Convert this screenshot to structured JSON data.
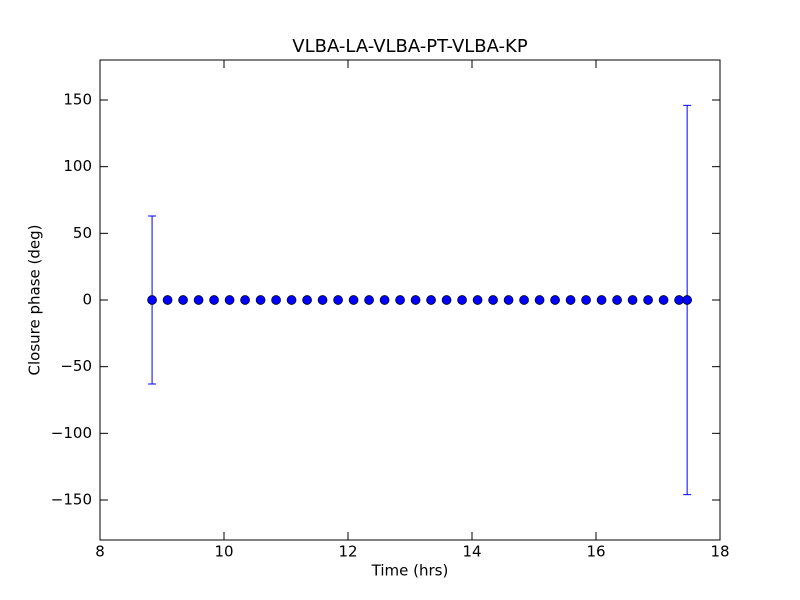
{
  "chart_data": {
    "type": "errorbar",
    "title": "VLBA-LA-VLBA-PT-VLBA-KP",
    "x_label": "Time (hrs)",
    "y_label": "Closure phase (deg)",
    "x": [
      8.84,
      9.09,
      9.34,
      9.59,
      9.84,
      10.09,
      10.34,
      10.59,
      10.84,
      11.09,
      11.34,
      11.59,
      11.84,
      12.09,
      12.34,
      12.59,
      12.84,
      13.09,
      13.34,
      13.59,
      13.84,
      14.09,
      14.34,
      14.59,
      14.84,
      15.09,
      15.34,
      15.59,
      15.84,
      16.09,
      16.34,
      16.59,
      16.84,
      17.09,
      17.34,
      17.47
    ],
    "values": [
      0,
      0,
      0,
      0,
      0,
      0,
      0,
      0,
      0,
      0,
      0,
      0,
      0,
      0,
      0,
      0,
      0,
      0,
      0,
      0,
      0,
      0,
      0,
      0,
      0,
      0,
      0,
      0,
      0,
      0,
      0,
      0,
      0,
      0,
      0,
      0
    ],
    "errors": [
      63,
      0,
      0,
      0,
      0,
      0,
      0,
      0,
      0,
      0,
      0,
      0,
      0,
      0,
      0,
      0,
      0,
      0,
      0,
      0,
      0,
      0,
      0,
      0,
      0,
      0,
      0,
      0,
      0,
      0,
      0,
      0,
      0,
      0,
      0,
      146
    ],
    "color": "#0000ff",
    "xlim": [
      8,
      18
    ],
    "xticks": [
      8,
      10,
      12,
      14,
      16,
      18
    ],
    "ylim": [
      -180,
      180
    ],
    "yticks": [
      {
        "value": -150,
        "label": "−150"
      },
      {
        "value": -100,
        "label": "−100"
      },
      {
        "value": -50,
        "label": "−50"
      },
      0,
      50,
      100,
      150
    ]
  }
}
